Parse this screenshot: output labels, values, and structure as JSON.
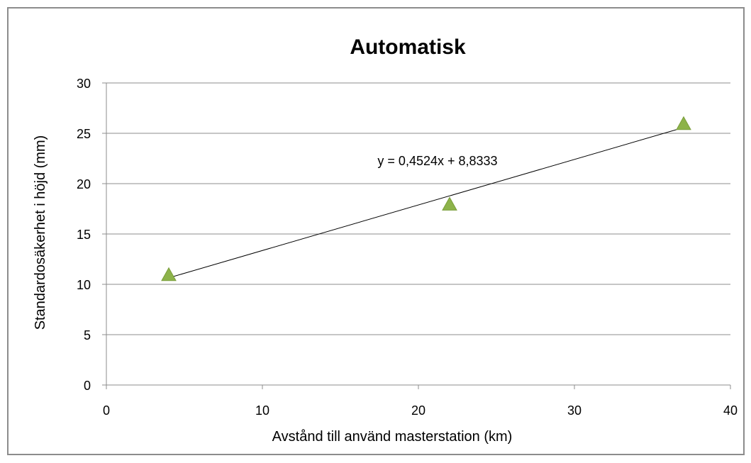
{
  "chart_data": {
    "type": "scatter",
    "title": "Automatisk",
    "xlabel": "Avstånd till använd masterstation (km)",
    "ylabel": "Standardosäkerhet i höjd (mm)",
    "xlim": [
      0,
      40
    ],
    "ylim": [
      0,
      30
    ],
    "xticks": [
      0,
      10,
      20,
      30,
      40
    ],
    "yticks": [
      0,
      5,
      10,
      15,
      20,
      25,
      30
    ],
    "grid": "horizontal",
    "series": [
      {
        "x": [
          4,
          22,
          37
        ],
        "y": [
          11,
          18,
          26
        ],
        "marker": "triangle",
        "color": "#8db34a"
      }
    ],
    "trendline": {
      "type": "linear",
      "slope": 0.4524,
      "intercept": 8.8333,
      "x_range": [
        4,
        37
      ],
      "label": "y = 0,4524x + 8,8333",
      "color": "#000000"
    }
  }
}
